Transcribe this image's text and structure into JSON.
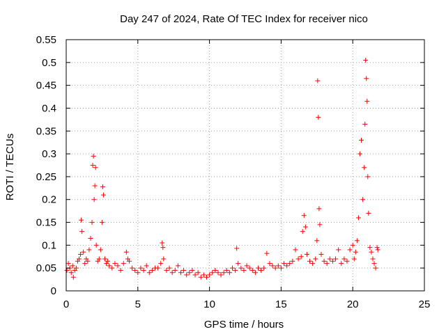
{
  "chart_data": {
    "type": "scatter",
    "title": "Day 247 of 2024, Rate Of TEC Index for receiver nico",
    "xlabel": "GPS time / hours",
    "ylabel": "ROTI / TECUs",
    "xlim": [
      0,
      25
    ],
    "ylim": [
      0,
      0.55
    ],
    "xticks": [
      0,
      5,
      10,
      15,
      20,
      25
    ],
    "yticks": [
      0,
      0.05,
      0.1,
      0.15,
      0.2,
      0.25,
      0.3,
      0.35,
      0.4,
      0.45,
      0.5,
      0.55
    ],
    "grid": true,
    "marker": "+",
    "color": "#ff0000",
    "series": [
      {
        "x": [
          0.05,
          0.15,
          0.25,
          0.35,
          0.45,
          0.5,
          0.6,
          0.7,
          0.8,
          0.9,
          1.0,
          1.05,
          1.1,
          1.2,
          1.3,
          1.4,
          1.5,
          1.6,
          1.7,
          1.8,
          1.85,
          1.9,
          1.95,
          2.0,
          2.05,
          2.1,
          2.2,
          2.3,
          2.4,
          2.5,
          2.55,
          2.6,
          2.7,
          2.8,
          2.9,
          3.0,
          3.2,
          3.4,
          3.6,
          3.8,
          4.0,
          4.2,
          4.3,
          4.4,
          4.6,
          4.8,
          5.0,
          5.2,
          5.4,
          5.6,
          5.8,
          6.0,
          6.2,
          6.4,
          6.6,
          6.7,
          6.75,
          6.8,
          7.0,
          7.2,
          7.4,
          7.6,
          7.8,
          8.0,
          8.2,
          8.4,
          8.6,
          8.8,
          9.0,
          9.2,
          9.4,
          9.6,
          9.8,
          10.0,
          10.2,
          10.4,
          10.6,
          10.8,
          11.0,
          11.2,
          11.4,
          11.6,
          11.8,
          11.9,
          12.0,
          12.2,
          12.4,
          12.6,
          12.8,
          13.0,
          13.2,
          13.4,
          13.6,
          13.8,
          14.0,
          14.2,
          14.4,
          14.6,
          14.8,
          15.0,
          15.2,
          15.4,
          15.6,
          15.8,
          16.0,
          16.2,
          16.4,
          16.5,
          16.6,
          16.7,
          16.8,
          17.0,
          17.2,
          17.4,
          17.5,
          17.55,
          17.6,
          17.65,
          17.7,
          17.8,
          18.0,
          18.2,
          18.4,
          18.6,
          18.8,
          19.0,
          19.2,
          19.4,
          19.6,
          19.8,
          20.0,
          20.1,
          20.2,
          20.3,
          20.4,
          20.5,
          20.6,
          20.7,
          20.8,
          20.85,
          20.9,
          20.95,
          21.0,
          21.05,
          21.1,
          21.2,
          21.3,
          21.4,
          21.5,
          21.6,
          21.7,
          21.75
        ],
        "y": [
          0.045,
          0.06,
          0.05,
          0.04,
          0.055,
          0.03,
          0.045,
          0.05,
          0.065,
          0.07,
          0.08,
          0.155,
          0.13,
          0.085,
          0.06,
          0.07,
          0.065,
          0.09,
          0.115,
          0.15,
          0.275,
          0.295,
          0.2,
          0.23,
          0.27,
          0.1,
          0.065,
          0.07,
          0.09,
          0.15,
          0.228,
          0.21,
          0.07,
          0.06,
          0.065,
          0.055,
          0.05,
          0.06,
          0.055,
          0.045,
          0.06,
          0.085,
          0.07,
          0.065,
          0.05,
          0.045,
          0.04,
          0.05,
          0.045,
          0.055,
          0.04,
          0.045,
          0.05,
          0.05,
          0.06,
          0.105,
          0.095,
          0.07,
          0.045,
          0.05,
          0.04,
          0.045,
          0.055,
          0.04,
          0.045,
          0.035,
          0.04,
          0.045,
          0.035,
          0.04,
          0.03,
          0.035,
          0.03,
          0.035,
          0.04,
          0.045,
          0.04,
          0.035,
          0.04,
          0.045,
          0.04,
          0.05,
          0.045,
          0.093,
          0.06,
          0.05,
          0.045,
          0.055,
          0.05,
          0.045,
          0.04,
          0.05,
          0.045,
          0.05,
          0.082,
          0.06,
          0.055,
          0.05,
          0.055,
          0.05,
          0.06,
          0.055,
          0.06,
          0.065,
          0.09,
          0.07,
          0.075,
          0.13,
          0.165,
          0.14,
          0.08,
          0.065,
          0.06,
          0.07,
          0.11,
          0.46,
          0.38,
          0.18,
          0.145,
          0.08,
          0.065,
          0.06,
          0.07,
          0.065,
          0.07,
          0.09,
          0.06,
          0.07,
          0.065,
          0.09,
          0.1,
          0.07,
          0.085,
          0.11,
          0.16,
          0.3,
          0.33,
          0.2,
          0.27,
          0.365,
          0.505,
          0.465,
          0.415,
          0.25,
          0.17,
          0.095,
          0.085,
          0.07,
          0.06,
          0.05,
          0.095,
          0.09
        ]
      }
    ]
  }
}
